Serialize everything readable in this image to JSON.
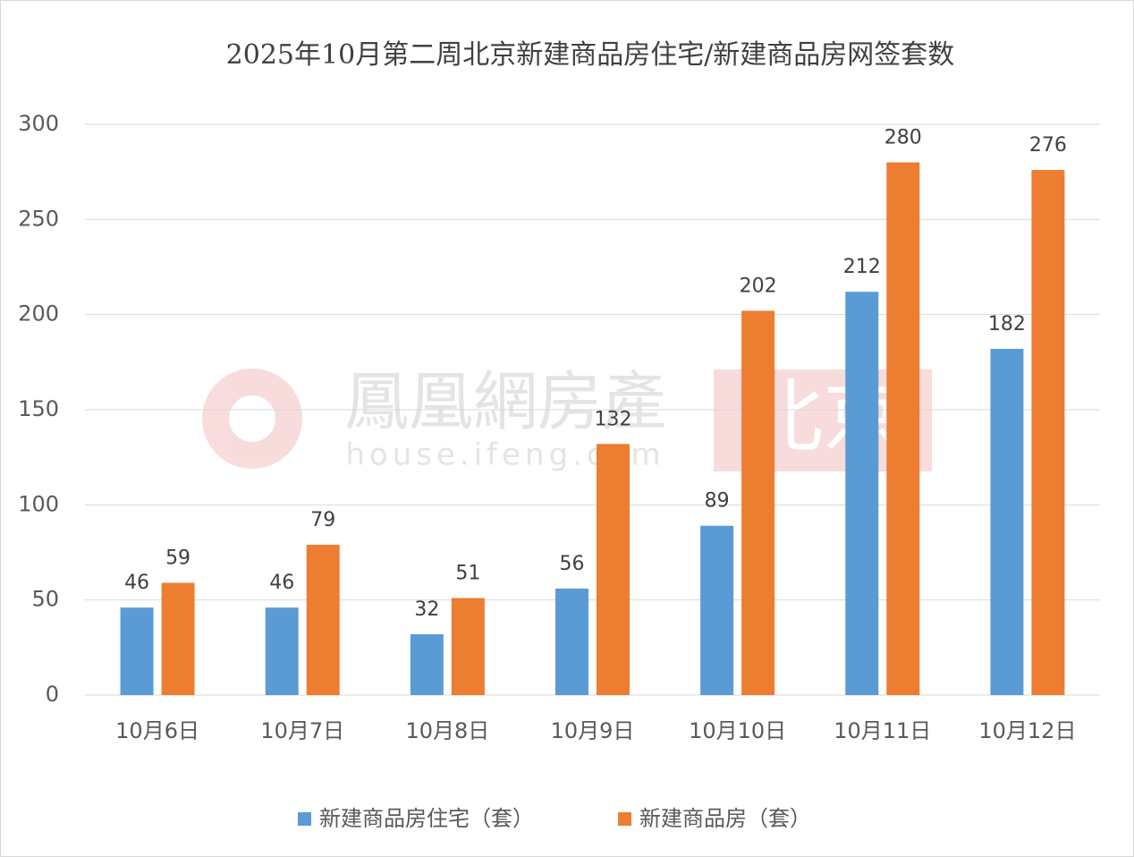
{
  "chart_data": {
    "type": "bar",
    "title": "2025年10月第二周北京新建商品房住宅/新建商品房网签套数",
    "categories": [
      "10月6日",
      "10月7日",
      "10月8日",
      "10月9日",
      "10月10日",
      "10月11日",
      "10月12日"
    ],
    "series": [
      {
        "name": "新建商品房住宅（套）",
        "color": "#5b9bd5",
        "values": [
          46,
          46,
          32,
          56,
          89,
          212,
          182
        ]
      },
      {
        "name": "新建商品房（套）",
        "color": "#ed7d31",
        "values": [
          59,
          79,
          51,
          132,
          202,
          280,
          276
        ]
      }
    ],
    "ylim": [
      0,
      300
    ],
    "yticks": [
      0,
      50,
      100,
      150,
      200,
      250,
      300
    ],
    "grid": true,
    "legend": "bottom",
    "watermark": {
      "brand": "鳳凰網房產",
      "url": "house.ifeng.com",
      "city": "北京"
    }
  }
}
